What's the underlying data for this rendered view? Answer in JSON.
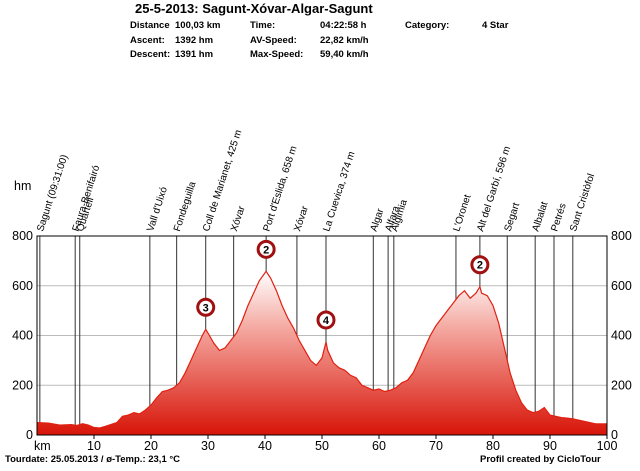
{
  "chart_data": {
    "type": "area",
    "title": "25-5-2013: Sagunt-Xóvar-Algar-Sagunt",
    "stats": [
      {
        "label": "Distance",
        "value": "100,03 km"
      },
      {
        "label": "Time:",
        "value": "04:22:58 h"
      },
      {
        "label": "Category:",
        "value": "4 Star"
      },
      {
        "label": "Ascent:",
        "value": "1392 hm"
      },
      {
        "label": "AV-Speed:",
        "value": "22,82 km/h"
      },
      {
        "label": "Descent:",
        "value": "1391 hm"
      },
      {
        "label": "Max-Speed:",
        "value": "59,40 km/h"
      }
    ],
    "x_label": "km",
    "y_label": "hm",
    "x": [
      0,
      2,
      4,
      6,
      7,
      8,
      9,
      10,
      11,
      12,
      14,
      15,
      16,
      17,
      18,
      19,
      20,
      21,
      22,
      23,
      24,
      25,
      26,
      27,
      28,
      29,
      29.6,
      30,
      31,
      32,
      33,
      34,
      35,
      36,
      37,
      38,
      39,
      40.2,
      41,
      42,
      43,
      44,
      45,
      46,
      47,
      48,
      49,
      50,
      50.7,
      51,
      52,
      53,
      54,
      55,
      56,
      57,
      58,
      59,
      60,
      61,
      62,
      63,
      64,
      65,
      66,
      67,
      68,
      69,
      70,
      71,
      72,
      73,
      74,
      75,
      76,
      77,
      77.7,
      78,
      79,
      80,
      81,
      82,
      83,
      84,
      85,
      86,
      87,
      88,
      89,
      90,
      91,
      92,
      93,
      94,
      95,
      96,
      97,
      98,
      99,
      100
    ],
    "values": [
      50,
      48,
      40,
      42,
      38,
      45,
      40,
      30,
      28,
      35,
      50,
      75,
      80,
      90,
      85,
      100,
      120,
      150,
      175,
      180,
      190,
      210,
      250,
      300,
      350,
      400,
      425,
      410,
      370,
      340,
      350,
      380,
      410,
      460,
      520,
      570,
      620,
      658,
      630,
      580,
      520,
      470,
      430,
      380,
      340,
      300,
      280,
      310,
      374,
      340,
      290,
      270,
      260,
      240,
      230,
      200,
      190,
      180,
      185,
      175,
      180,
      190,
      210,
      220,
      250,
      300,
      350,
      400,
      440,
      470,
      500,
      530,
      560,
      580,
      550,
      570,
      596,
      570,
      560,
      520,
      450,
      350,
      250,
      180,
      130,
      100,
      90,
      95,
      110,
      80,
      75,
      70,
      68,
      65,
      60,
      55,
      50,
      45,
      45,
      45
    ],
    "color": "#e02010",
    "xlim": [
      0,
      100
    ],
    "ylim": [
      0,
      800
    ],
    "xticks": [
      10,
      20,
      30,
      40,
      50,
      60,
      70,
      80,
      90,
      100
    ],
    "yticks": [
      0,
      200,
      400,
      600,
      800
    ],
    "grid": true,
    "waypoints": [
      {
        "label": "Sagunt (09:31:00)",
        "km": 0.5
      },
      {
        "label": "Faura-Benifairó",
        "km": 6.7
      },
      {
        "label": "Quartell",
        "km": 7.5
      },
      {
        "label": "Vall d'Uixó",
        "km": 19.8
      },
      {
        "label": "Fondeguilla",
        "km": 24.5
      },
      {
        "label": "Coll de Marianet, 425 m",
        "km": 29.6
      },
      {
        "label": "Xóvar",
        "km": 34.5
      },
      {
        "label": "Port d'Eslida, 658 m",
        "km": 40.2
      },
      {
        "label": "Xóvar",
        "km": 45.6
      },
      {
        "label": "La Cuevica, 374 m",
        "km": 50.7
      },
      {
        "label": "Algar",
        "km": 59
      },
      {
        "label": "Alfara",
        "km": 61.6
      },
      {
        "label": "Algimia",
        "km": 62.6
      },
      {
        "label": "L'Oronet",
        "km": 73.5
      },
      {
        "label": "Alt del Garbí, 596 m",
        "km": 77.7
      },
      {
        "label": "Segart",
        "km": 82.5
      },
      {
        "label": "Albalat",
        "km": 87.4
      },
      {
        "label": "Petrés",
        "km": 90.7
      },
      {
        "label": "Sant Cristòfol",
        "km": 94
      }
    ],
    "climbs": [
      {
        "label": "3",
        "km": 29.6
      },
      {
        "label": "2",
        "km": 40.2
      },
      {
        "label": "4",
        "km": 50.7
      },
      {
        "label": "2",
        "km": 77.7
      }
    ],
    "footer_left": "Tourdate: 25.05.2013  /  ø-Temp.: 23,1 °C",
    "footer_right": "Profil created by CicloTour"
  }
}
